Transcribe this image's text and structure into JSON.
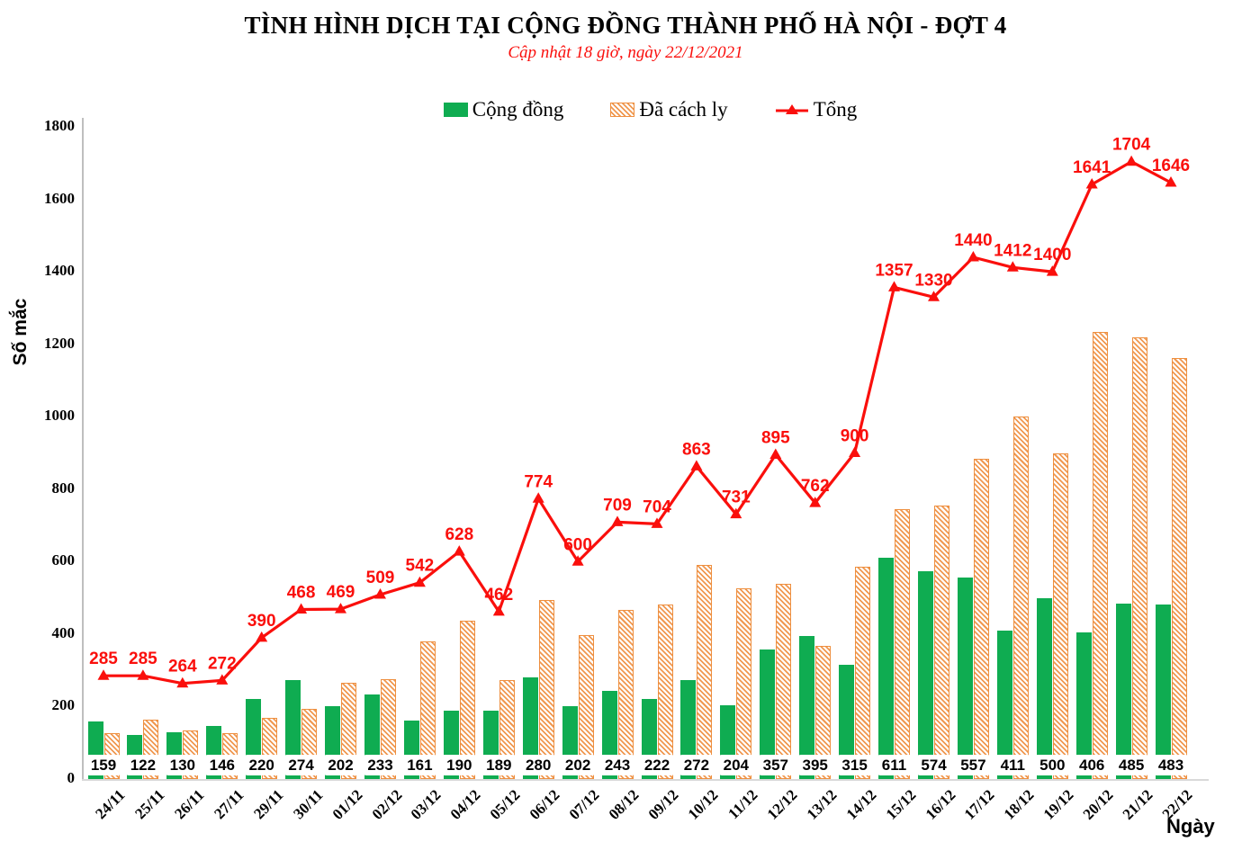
{
  "title": "TÌNH HÌNH DỊCH TẠI CỘNG ĐỒNG THÀNH PHỐ HÀ NỘI - ĐỢT 4",
  "subtitle": "Cập nhật 18 giờ, ngày 22/12/2021",
  "legend": {
    "community": "Cộng đồng",
    "quarantine": "Đã cách ly",
    "total": "Tổng"
  },
  "axes": {
    "y_title": "Số mắc",
    "x_title": "Ngày",
    "y_ticks": [
      0,
      200,
      400,
      600,
      800,
      1000,
      1200,
      1400,
      1600,
      1800
    ]
  },
  "colors": {
    "community": "#0FAC51",
    "quarantine_border": "#EE8F3F",
    "quarantine_stripe": "#F09850",
    "total": "#FA0F0C",
    "axis_line": "#BFBFBF",
    "baseline": "#D9D9D9",
    "value_text": "#000000"
  },
  "chart_data": {
    "type": "bar",
    "title": "TÌNH HÌNH DỊCH TẠI CỘNG ĐỒNG THÀNH PHỐ HÀ NỘI - ĐỢT 4",
    "xlabel": "Ngày",
    "ylabel": "Số mắc",
    "ylim": [
      0,
      1800
    ],
    "grid": false,
    "legend_position": "top",
    "categories": [
      "24/11",
      "25/11",
      "26/11",
      "27/11",
      "29/11",
      "30/11",
      "01/12",
      "02/12",
      "03/12",
      "04/12",
      "05/12",
      "06/12",
      "07/12",
      "08/12",
      "09/12",
      "10/12",
      "11/12",
      "12/12",
      "13/12",
      "14/12",
      "15/12",
      "16/12",
      "17/12",
      "18/12",
      "19/12",
      "20/12",
      "21/12",
      "22/12"
    ],
    "series": [
      {
        "name": "Cộng đồng",
        "type": "bar",
        "style": "solid-green",
        "labels_shown": true,
        "values": [
          159,
          122,
          130,
          146,
          220,
          274,
          202,
          233,
          161,
          190,
          189,
          280,
          202,
          243,
          222,
          272,
          204,
          357,
          395,
          315,
          611,
          574,
          557,
          411,
          500,
          406,
          485,
          483
        ]
      },
      {
        "name": "Đã cách ly",
        "type": "bar",
        "style": "hatched-orange",
        "labels_shown": false,
        "values": [
          126,
          163,
          134,
          126,
          170,
          194,
          267,
          276,
          381,
          438,
          273,
          494,
          398,
          466,
          482,
          591,
          527,
          538,
          367,
          585,
          746,
          756,
          883,
          1001,
          900,
          1235,
          1219,
          1163
        ]
      },
      {
        "name": "Tổng",
        "type": "line",
        "style": "red-line-triangle-markers",
        "labels_shown": true,
        "values": [
          285,
          285,
          264,
          272,
          390,
          468,
          469,
          509,
          542,
          628,
          462,
          774,
          600,
          709,
          704,
          863,
          731,
          895,
          762,
          900,
          1357,
          1330,
          1440,
          1412,
          1400,
          1641,
          1704,
          1646
        ]
      }
    ]
  }
}
